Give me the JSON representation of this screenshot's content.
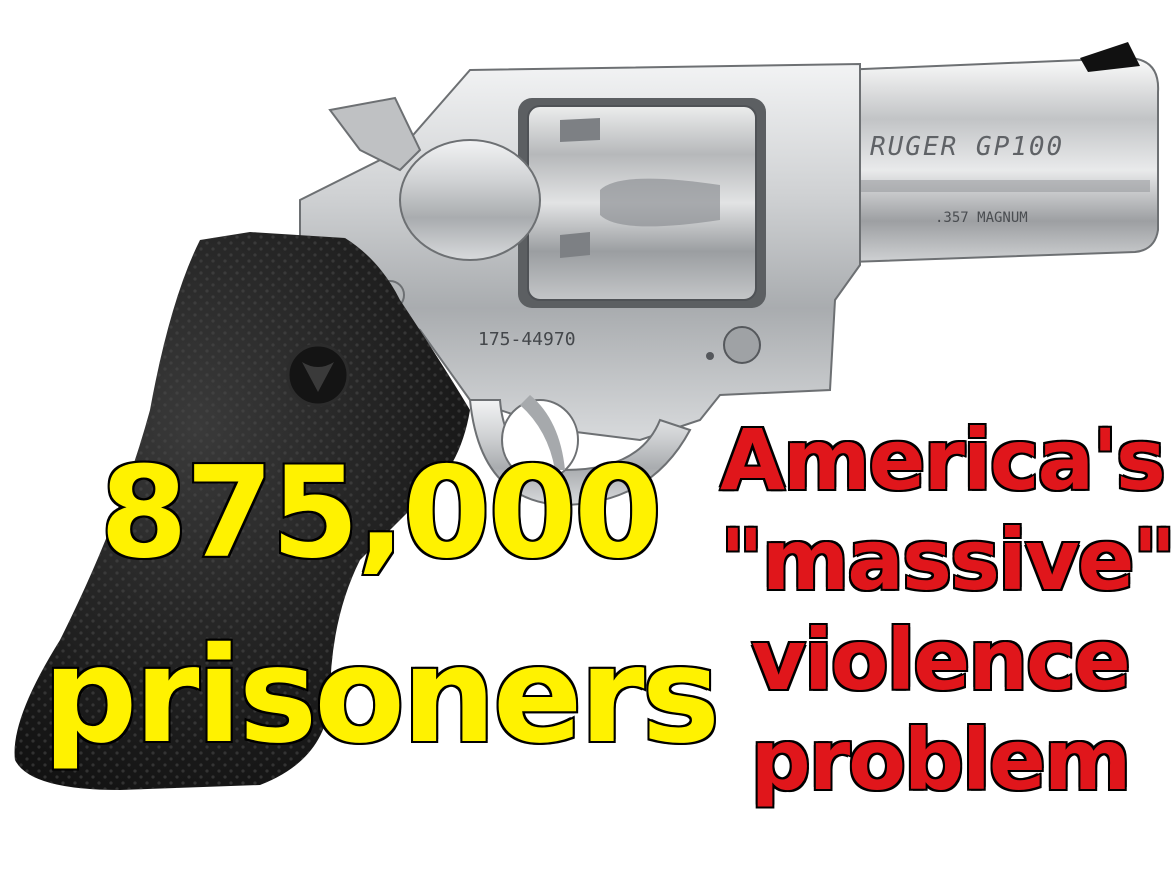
{
  "headline": {
    "number": "875,000",
    "word": "prisoners"
  },
  "side_text": {
    "line1": "America's",
    "line2": "\"massive\"",
    "line3": "violence",
    "line4": "problem"
  },
  "revolver_markings": {
    "barrel_brand": "RUGER GP100",
    "caliber": ".357 MAGNUM",
    "serial": "175-44970"
  },
  "colors": {
    "headline_fill": "#fff200",
    "side_fill": "#e0161b",
    "outline": "#000000",
    "steel": "#c9cbcd",
    "grip": "#1e1e1e"
  }
}
